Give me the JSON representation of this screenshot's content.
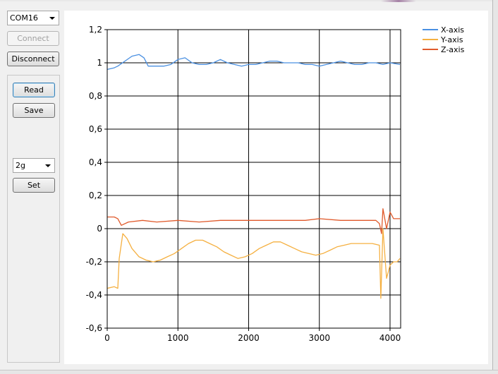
{
  "port_select": {
    "value": "COM16"
  },
  "buttons": {
    "connect": "Connect",
    "disconnect": "Disconnect",
    "read": "Read",
    "save": "Save",
    "set": "Set"
  },
  "range_select": {
    "value": "2g"
  },
  "chart_data": {
    "type": "line",
    "title": "",
    "xlabel": "",
    "ylabel": "",
    "xlim": [
      0,
      4150
    ],
    "ylim": [
      -0.6,
      1.2
    ],
    "x_ticks": [
      "0",
      "1000",
      "2000",
      "3000",
      "4000"
    ],
    "y_ticks": [
      "-0,6",
      "-0,4",
      "-0,2",
      "0",
      "0,2",
      "0,4",
      "0,6",
      "0,8",
      "1",
      "1,2"
    ],
    "grid": true,
    "legend": "top-right",
    "series": [
      {
        "name": "X-axis",
        "color": "#4a90e2",
        "points": [
          [
            0,
            0.96
          ],
          [
            100,
            0.97
          ],
          [
            150,
            0.98
          ],
          [
            250,
            1.01
          ],
          [
            350,
            1.04
          ],
          [
            450,
            1.05
          ],
          [
            520,
            1.03
          ],
          [
            580,
            0.98
          ],
          [
            700,
            0.98
          ],
          [
            800,
            0.98
          ],
          [
            900,
            0.99
          ],
          [
            1000,
            1.02
          ],
          [
            1100,
            1.03
          ],
          [
            1200,
            1.0
          ],
          [
            1300,
            0.99
          ],
          [
            1400,
            0.99
          ],
          [
            1500,
            1.0
          ],
          [
            1600,
            1.02
          ],
          [
            1700,
            1.0
          ],
          [
            1800,
            0.99
          ],
          [
            1900,
            0.98
          ],
          [
            2000,
            0.99
          ],
          [
            2100,
            0.99
          ],
          [
            2200,
            1.0
          ],
          [
            2300,
            1.01
          ],
          [
            2400,
            1.01
          ],
          [
            2500,
            1.0
          ],
          [
            2600,
            1.0
          ],
          [
            2700,
            1.0
          ],
          [
            2800,
            0.99
          ],
          [
            2900,
            0.99
          ],
          [
            3000,
            0.98
          ],
          [
            3100,
            0.99
          ],
          [
            3200,
            1.0
          ],
          [
            3300,
            1.01
          ],
          [
            3400,
            1.0
          ],
          [
            3500,
            0.99
          ],
          [
            3600,
            0.99
          ],
          [
            3700,
            1.0
          ],
          [
            3800,
            1.0
          ],
          [
            3900,
            0.99
          ],
          [
            4000,
            1.0
          ],
          [
            4140,
            0.99
          ]
        ]
      },
      {
        "name": "Y-axis",
        "color": "#f5b041",
        "points": [
          [
            0,
            -0.36
          ],
          [
            100,
            -0.35
          ],
          [
            150,
            -0.36
          ],
          [
            170,
            -0.18
          ],
          [
            220,
            -0.03
          ],
          [
            280,
            -0.06
          ],
          [
            350,
            -0.12
          ],
          [
            450,
            -0.17
          ],
          [
            550,
            -0.19
          ],
          [
            650,
            -0.2
          ],
          [
            750,
            -0.19
          ],
          [
            850,
            -0.17
          ],
          [
            950,
            -0.15
          ],
          [
            1050,
            -0.12
          ],
          [
            1150,
            -0.09
          ],
          [
            1250,
            -0.07
          ],
          [
            1350,
            -0.07
          ],
          [
            1450,
            -0.09
          ],
          [
            1550,
            -0.11
          ],
          [
            1650,
            -0.14
          ],
          [
            1750,
            -0.16
          ],
          [
            1850,
            -0.18
          ],
          [
            1950,
            -0.17
          ],
          [
            2050,
            -0.15
          ],
          [
            2150,
            -0.12
          ],
          [
            2250,
            -0.1
          ],
          [
            2350,
            -0.08
          ],
          [
            2450,
            -0.08
          ],
          [
            2550,
            -0.1
          ],
          [
            2650,
            -0.12
          ],
          [
            2750,
            -0.14
          ],
          [
            2850,
            -0.15
          ],
          [
            2950,
            -0.16
          ],
          [
            3050,
            -0.15
          ],
          [
            3150,
            -0.13
          ],
          [
            3250,
            -0.11
          ],
          [
            3350,
            -0.1
          ],
          [
            3450,
            -0.09
          ],
          [
            3550,
            -0.09
          ],
          [
            3650,
            -0.09
          ],
          [
            3750,
            -0.09
          ],
          [
            3850,
            -0.1
          ],
          [
            3870,
            -0.42
          ],
          [
            3900,
            0.0
          ],
          [
            3950,
            -0.3
          ],
          [
            4000,
            -0.22
          ],
          [
            4050,
            -0.2
          ],
          [
            4100,
            -0.2
          ],
          [
            4140,
            -0.18
          ]
        ]
      },
      {
        "name": "Z-axis",
        "color": "#e05a2b",
        "points": [
          [
            0,
            0.07
          ],
          [
            100,
            0.07
          ],
          [
            150,
            0.06
          ],
          [
            200,
            0.02
          ],
          [
            300,
            0.04
          ],
          [
            500,
            0.05
          ],
          [
            700,
            0.04
          ],
          [
            1000,
            0.05
          ],
          [
            1300,
            0.04
          ],
          [
            1600,
            0.05
          ],
          [
            1900,
            0.05
          ],
          [
            2200,
            0.05
          ],
          [
            2500,
            0.05
          ],
          [
            2800,
            0.05
          ],
          [
            3000,
            0.06
          ],
          [
            3300,
            0.05
          ],
          [
            3600,
            0.05
          ],
          [
            3800,
            0.05
          ],
          [
            3850,
            0.03
          ],
          [
            3880,
            -0.03
          ],
          [
            3900,
            0.12
          ],
          [
            3950,
            0.0
          ],
          [
            4000,
            0.1
          ],
          [
            4050,
            0.06
          ],
          [
            4140,
            0.06
          ]
        ]
      }
    ]
  }
}
